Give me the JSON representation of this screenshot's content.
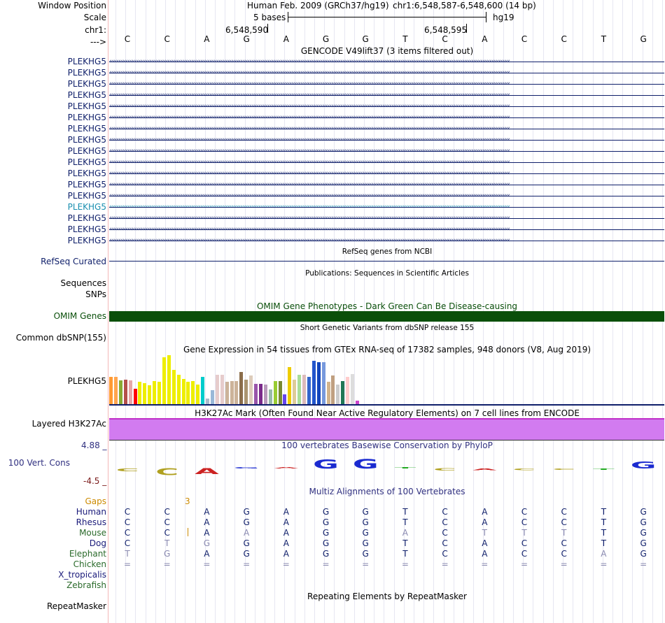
{
  "header": {
    "window_position_label": "Window Position",
    "scale_label": "Scale",
    "chrom_label": "chr1:",
    "strand_label": "--->",
    "assembly": "Human Feb. 2009 (GRCh37/hg19)",
    "position": "chr1:6,548,587-6,548,600 (14 bp)",
    "scale_text": "5 bases",
    "db": "hg19",
    "pos_tick_1": "6,548,590",
    "pos_tick_2": "6,548,595",
    "bases": [
      "C",
      "C",
      "A",
      "G",
      "A",
      "G",
      "G",
      "T",
      "C",
      "A",
      "C",
      "C",
      "T",
      "G"
    ]
  },
  "gencode": {
    "title": "GENCODE V49lift37 (3 items filtered out)",
    "gene_name": "PLEKHG5",
    "rows": [
      "PLEKHG5",
      "PLEKHG5",
      "PLEKHG5",
      "PLEKHG5",
      "PLEKHG5",
      "PLEKHG5",
      "PLEKHG5",
      "PLEKHG5",
      "PLEKHG5",
      "PLEKHG5",
      "PLEKHG5",
      "PLEKHG5",
      "PLEKHG5",
      "PLEKHG5",
      "PLEKHG5",
      "PLEKHG5",
      "PLEKHG5"
    ],
    "highlight_row": 13,
    "color": "#0f1f6a",
    "highlight_color": "#1a8fb0"
  },
  "refseq": {
    "title": "RefSeq genes from NCBI",
    "label": "RefSeq Curated"
  },
  "publications": {
    "title": "Publications: Sequences in Scientific Articles",
    "label1": "Sequences",
    "label2": "SNPs"
  },
  "omim": {
    "title": "OMIM Gene Phenotypes - Dark Green Can Be Disease-causing",
    "label": "OMIM Genes",
    "color": "#0a4f0a"
  },
  "dbsnp": {
    "title": "Short Genetic Variants from dbSNP release 155",
    "label": "Common dbSNP(155)"
  },
  "gtex": {
    "title": "Gene Expression in 54 tissues from GTEx RNA-seq of 17382 samples, 948 donors (V8, Aug 2019)",
    "label": "PLEKHG5",
    "bars": [
      {
        "v": 0.55,
        "c": "#ff9a33"
      },
      {
        "v": 0.55,
        "c": "#ffa54f"
      },
      {
        "v": 0.48,
        "c": "#88aa33"
      },
      {
        "v": 0.5,
        "c": "#b4504a"
      },
      {
        "v": 0.48,
        "c": "#e7a7a7"
      },
      {
        "v": 0.32,
        "c": "#ff0000"
      },
      {
        "v": 0.45,
        "c": "#eeee00"
      },
      {
        "v": 0.43,
        "c": "#eeee00"
      },
      {
        "v": 0.38,
        "c": "#eeee00"
      },
      {
        "v": 0.47,
        "c": "#eeee00"
      },
      {
        "v": 0.45,
        "c": "#eeee00"
      },
      {
        "v": 0.96,
        "c": "#eeee00"
      },
      {
        "v": 1.0,
        "c": "#eeee00"
      },
      {
        "v": 0.7,
        "c": "#eeee00"
      },
      {
        "v": 0.6,
        "c": "#eeee00"
      },
      {
        "v": 0.52,
        "c": "#eeee00"
      },
      {
        "v": 0.45,
        "c": "#eeee00"
      },
      {
        "v": 0.47,
        "c": "#eeee00"
      },
      {
        "v": 0.4,
        "c": "#eeee00"
      },
      {
        "v": 0.55,
        "c": "#00cccc"
      },
      {
        "v": 0.12,
        "c": "#aabbcc"
      },
      {
        "v": 0.28,
        "c": "#99b8d8"
      },
      {
        "v": 0.6,
        "c": "#e6cccc"
      },
      {
        "v": 0.6,
        "c": "#e6cccc"
      },
      {
        "v": 0.45,
        "c": "#ccb39a"
      },
      {
        "v": 0.47,
        "c": "#ccb39a"
      },
      {
        "v": 0.47,
        "c": "#ccb39a"
      },
      {
        "v": 0.65,
        "c": "#8b6d4b"
      },
      {
        "v": 0.5,
        "c": "#aa9470"
      },
      {
        "v": 0.58,
        "c": "#ddccbb"
      },
      {
        "v": 0.42,
        "c": "#9955aa"
      },
      {
        "v": 0.42,
        "c": "#7a2a8a"
      },
      {
        "v": 0.4,
        "c": "#b899bb"
      },
      {
        "v": 0.3,
        "c": "#99bbaa"
      },
      {
        "v": 0.47,
        "c": "#99cc33"
      },
      {
        "v": 0.47,
        "c": "#778833"
      },
      {
        "v": 0.2,
        "c": "#6644ee"
      },
      {
        "v": 0.75,
        "c": "#eecc00"
      },
      {
        "v": 0.5,
        "c": "#ddcc99"
      },
      {
        "v": 0.6,
        "c": "#aadd99"
      },
      {
        "v": 0.6,
        "c": "#ddbbbb"
      },
      {
        "v": 0.55,
        "c": "#3366cc"
      },
      {
        "v": 0.88,
        "c": "#2255cc"
      },
      {
        "v": 0.85,
        "c": "#1144bb"
      },
      {
        "v": 0.85,
        "c": "#7799dd"
      },
      {
        "v": 0.45,
        "c": "#d2b48c"
      },
      {
        "v": 0.58,
        "c": "#c0a080"
      },
      {
        "v": 0.4,
        "c": "#cccccc"
      },
      {
        "v": 0.47,
        "c": "#227755"
      },
      {
        "v": 0.55,
        "c": "#ffcccc"
      },
      {
        "v": 0.62,
        "c": "#dddddd"
      },
      {
        "v": 0.07,
        "c": "#cc44cc"
      }
    ]
  },
  "h3k27ac": {
    "title": "H3K27Ac Mark (Often Found Near Active Regulatory Elements) on 7 cell lines from ENCODE",
    "label": "Layered H3K27Ac",
    "color": "#d27bf0"
  },
  "phylop": {
    "title": "100 vertebrates Basewise Conservation by PhyloP",
    "label": "100 Vert. Cons",
    "max_label": "4.88 _",
    "min_label": "-4.5 _",
    "scores": [
      -0.5,
      -1.2,
      -1.0,
      0.0,
      0.0,
      1.6,
      1.7,
      0.0,
      -0.4,
      -0.3,
      -0.3,
      -0.2,
      -0.1,
      1.2
    ],
    "letters": [
      "C",
      "C",
      "A",
      "G",
      "A",
      "G",
      "G",
      "T",
      "C",
      "A",
      "C",
      "C",
      "T",
      "G"
    ]
  },
  "multiz": {
    "title": "Multiz Alignments of 100 Vertebrates",
    "gaps_label": "Gaps",
    "gap_count": "3",
    "species": [
      {
        "name": "Human",
        "color": "#1a1a7a",
        "bases": [
          "C",
          "C",
          "A",
          "G",
          "A",
          "G",
          "G",
          "T",
          "C",
          "A",
          "C",
          "C",
          "T",
          "G"
        ],
        "dim": []
      },
      {
        "name": "Rhesus",
        "color": "#1a1a7a",
        "bases": [
          "C",
          "C",
          "A",
          "G",
          "A",
          "G",
          "G",
          "T",
          "C",
          "A",
          "C",
          "C",
          "T",
          "G"
        ],
        "dim": []
      },
      {
        "name": "Mouse",
        "color": "#2a6a2a",
        "bases": [
          "C",
          "C",
          "A",
          "A",
          "A",
          "G",
          "G",
          "A",
          "C",
          "T",
          "T",
          "T",
          "T",
          "G"
        ],
        "dim": [
          3,
          7,
          9,
          10,
          11
        ]
      },
      {
        "name": "Dog",
        "color": "#1a1a7a",
        "bases": [
          "C",
          "T",
          "G",
          "G",
          "A",
          "G",
          "G",
          "T",
          "C",
          "A",
          "C",
          "C",
          "T",
          "G"
        ],
        "dim": [
          1,
          2
        ]
      },
      {
        "name": "Elephant",
        "color": "#2a6a2a",
        "bases": [
          "T",
          "G",
          "A",
          "G",
          "A",
          "G",
          "G",
          "T",
          "C",
          "A",
          "C",
          "C",
          "A",
          "G"
        ],
        "dim": [
          0,
          1,
          12
        ]
      },
      {
        "name": "Chicken",
        "color": "#2a6a2a",
        "bases": [
          "=",
          "=",
          "=",
          "=",
          "=",
          "=",
          "=",
          "=",
          "=",
          "=",
          "=",
          "=",
          "=",
          "="
        ],
        "dim": [
          0,
          1,
          2,
          3,
          4,
          5,
          6,
          7,
          8,
          9,
          10,
          11,
          12,
          13
        ]
      },
      {
        "name": "X_tropicalis",
        "color": "#1a1a7a",
        "bases": [],
        "dim": []
      },
      {
        "name": "Zebrafish",
        "color": "#2a6a2a",
        "bases": [],
        "dim": []
      }
    ]
  },
  "repeatmasker": {
    "title": "Repeating Elements by RepeatMasker",
    "label": "RepeatMasker"
  }
}
